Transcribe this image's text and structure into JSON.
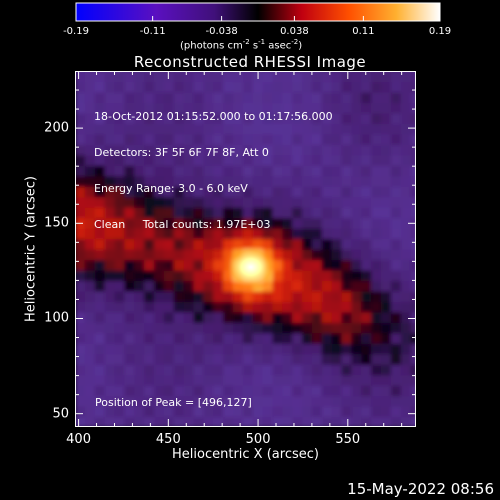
{
  "colorbar": {
    "ticks": [
      "-0.19",
      "-0.11",
      "-0.038",
      "0.038",
      "0.11",
      "0.19"
    ],
    "tick_values": [
      -0.19,
      -0.11,
      -0.038,
      0.038,
      0.11,
      0.19
    ],
    "range": [
      -0.19,
      0.19
    ],
    "unit_prefix": "(photons cm",
    "unit_exp1": "-2",
    "unit_mid": " s",
    "unit_exp2": "-1",
    "unit_mid2": " asec",
    "unit_exp3": "-2",
    "unit_suffix": ")"
  },
  "chart_data": {
    "type": "heatmap",
    "title": "Reconstructed RHESSI Image",
    "xlabel": "Heliocentric X (arcsec)",
    "ylabel": "Heliocentric Y (arcsec)",
    "xlim": [
      398,
      588
    ],
    "ylim": [
      43,
      230
    ],
    "x_ticks": [
      400,
      450,
      500,
      550
    ],
    "y_ticks": [
      50,
      100,
      150,
      200
    ],
    "x_tick_labels": [
      "400",
      "450",
      "500",
      "550"
    ],
    "y_tick_labels": [
      "50",
      "100",
      "150",
      "200"
    ],
    "peak": [
      496,
      127
    ],
    "colormap": [
      "#0000ff",
      "#5a189a",
      "#3a1a70",
      "#000000",
      "#c00000",
      "#ff6000",
      "#ffd040",
      "#ffffff"
    ]
  },
  "annotations": {
    "time_range": "18-Oct-2012 01:15:52.000 to 01:17:56.000",
    "detectors": "Detectors: 3F 5F 6F 7F 8F, Att 0",
    "energy": "Energy Range: 3.0 - 6.0 keV",
    "clean": "Clean     Total counts: 1.97E+03",
    "peak_text": "Position of Peak = [496,127]"
  },
  "footer": {
    "timestamp": "15-May-2022 08:56"
  }
}
